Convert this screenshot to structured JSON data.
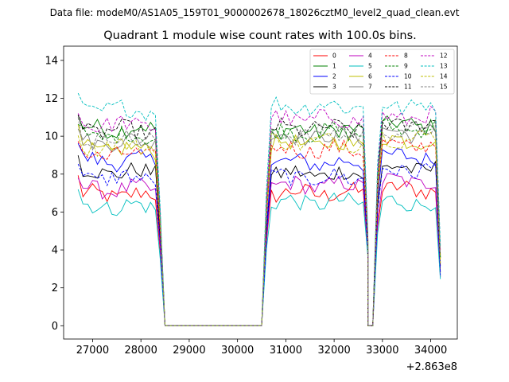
{
  "chart_data": {
    "type": "line",
    "suptitle": "Data file: modeM0/AS1A05_159T01_9000002678_18026cztM0_level2_quad_clean.evt",
    "title": "Quadrant 1 module wise count rates with 100.0s bins.",
    "xlabel": "",
    "ylabel": "",
    "offset_label": "+2.863e8",
    "xlim": [
      26400,
      34550
    ],
    "ylim": [
      -0.7,
      14.75
    ],
    "xticks": [
      27000,
      28000,
      29000,
      30000,
      31000,
      32000,
      33000,
      34000
    ],
    "yticks": [
      0,
      2,
      4,
      6,
      8,
      10,
      12,
      14
    ],
    "xtick_labels": [
      "27000",
      "28000",
      "29000",
      "30000",
      "31000",
      "32000",
      "33000",
      "34000"
    ],
    "ytick_labels": [
      "0",
      "2",
      "4",
      "6",
      "8",
      "10",
      "12",
      "14"
    ],
    "segments": [
      {
        "start": 26700,
        "end": 28300
      },
      {
        "start": 30700,
        "end": 32600
      },
      {
        "start": 33000,
        "end": 34100
      }
    ],
    "gaps": [
      {
        "start": 28500,
        "end": 30500,
        "value": 0
      },
      {
        "start": 32700,
        "end": 32800,
        "value": 0
      }
    ],
    "gap_edges": [
      {
        "x": 28400,
        "factor": 0.55
      },
      {
        "x": 30600,
        "factor": 0.62
      },
      {
        "x": 32900,
        "factor": 0.25
      },
      {
        "x": 34200,
        "factor": 0.35
      }
    ],
    "legend": {
      "location": "upper right",
      "columns": 4
    },
    "series": [
      {
        "name": "0",
        "color": "#ff0000",
        "dash": "solid",
        "level": [
          6.9,
          7.0,
          7.2
        ]
      },
      {
        "name": "1",
        "color": "#008000",
        "dash": "solid",
        "level": [
          10.4,
          10.3,
          10.6
        ]
      },
      {
        "name": "2",
        "color": "#0000ff",
        "dash": "solid",
        "level": [
          8.7,
          8.6,
          8.9
        ]
      },
      {
        "name": "3",
        "color": "#000000",
        "dash": "solid",
        "level": [
          8.1,
          8.0,
          8.3
        ]
      },
      {
        "name": "4",
        "color": "#bf00bf",
        "dash": "solid",
        "level": [
          7.2,
          7.4,
          7.6
        ]
      },
      {
        "name": "5",
        "color": "#00bfbf",
        "dash": "solid",
        "level": [
          6.3,
          6.5,
          6.5
        ]
      },
      {
        "name": "6",
        "color": "#bfbf00",
        "dash": "solid",
        "level": [
          9.3,
          9.6,
          9.8
        ]
      },
      {
        "name": "7",
        "color": "#808080",
        "dash": "solid",
        "level": [
          9.7,
          10.0,
          10.2
        ]
      },
      {
        "name": "8",
        "color": "#ff0000",
        "dash": "dashed",
        "level": [
          9.0,
          9.3,
          9.5
        ]
      },
      {
        "name": "9",
        "color": "#008000",
        "dash": "dashed",
        "level": [
          10.0,
          10.2,
          10.4
        ]
      },
      {
        "name": "10",
        "color": "#0000ff",
        "dash": "dashed",
        "level": [
          7.8,
          7.8,
          8.2
        ]
      },
      {
        "name": "11",
        "color": "#000000",
        "dash": "dashed",
        "level": [
          10.3,
          10.4,
          10.6
        ]
      },
      {
        "name": "12",
        "color": "#bf00bf",
        "dash": "dashed",
        "level": [
          10.6,
          10.9,
          11.0
        ]
      },
      {
        "name": "13",
        "color": "#00bfbf",
        "dash": "dashed",
        "level": [
          11.4,
          11.6,
          11.6
        ]
      },
      {
        "name": "14",
        "color": "#bfbf00",
        "dash": "dashed",
        "level": [
          9.5,
          9.7,
          9.9
        ]
      },
      {
        "name": "15",
        "color": "#808080",
        "dash": "dashed",
        "level": [
          9.9,
          10.1,
          10.3
        ]
      }
    ]
  }
}
